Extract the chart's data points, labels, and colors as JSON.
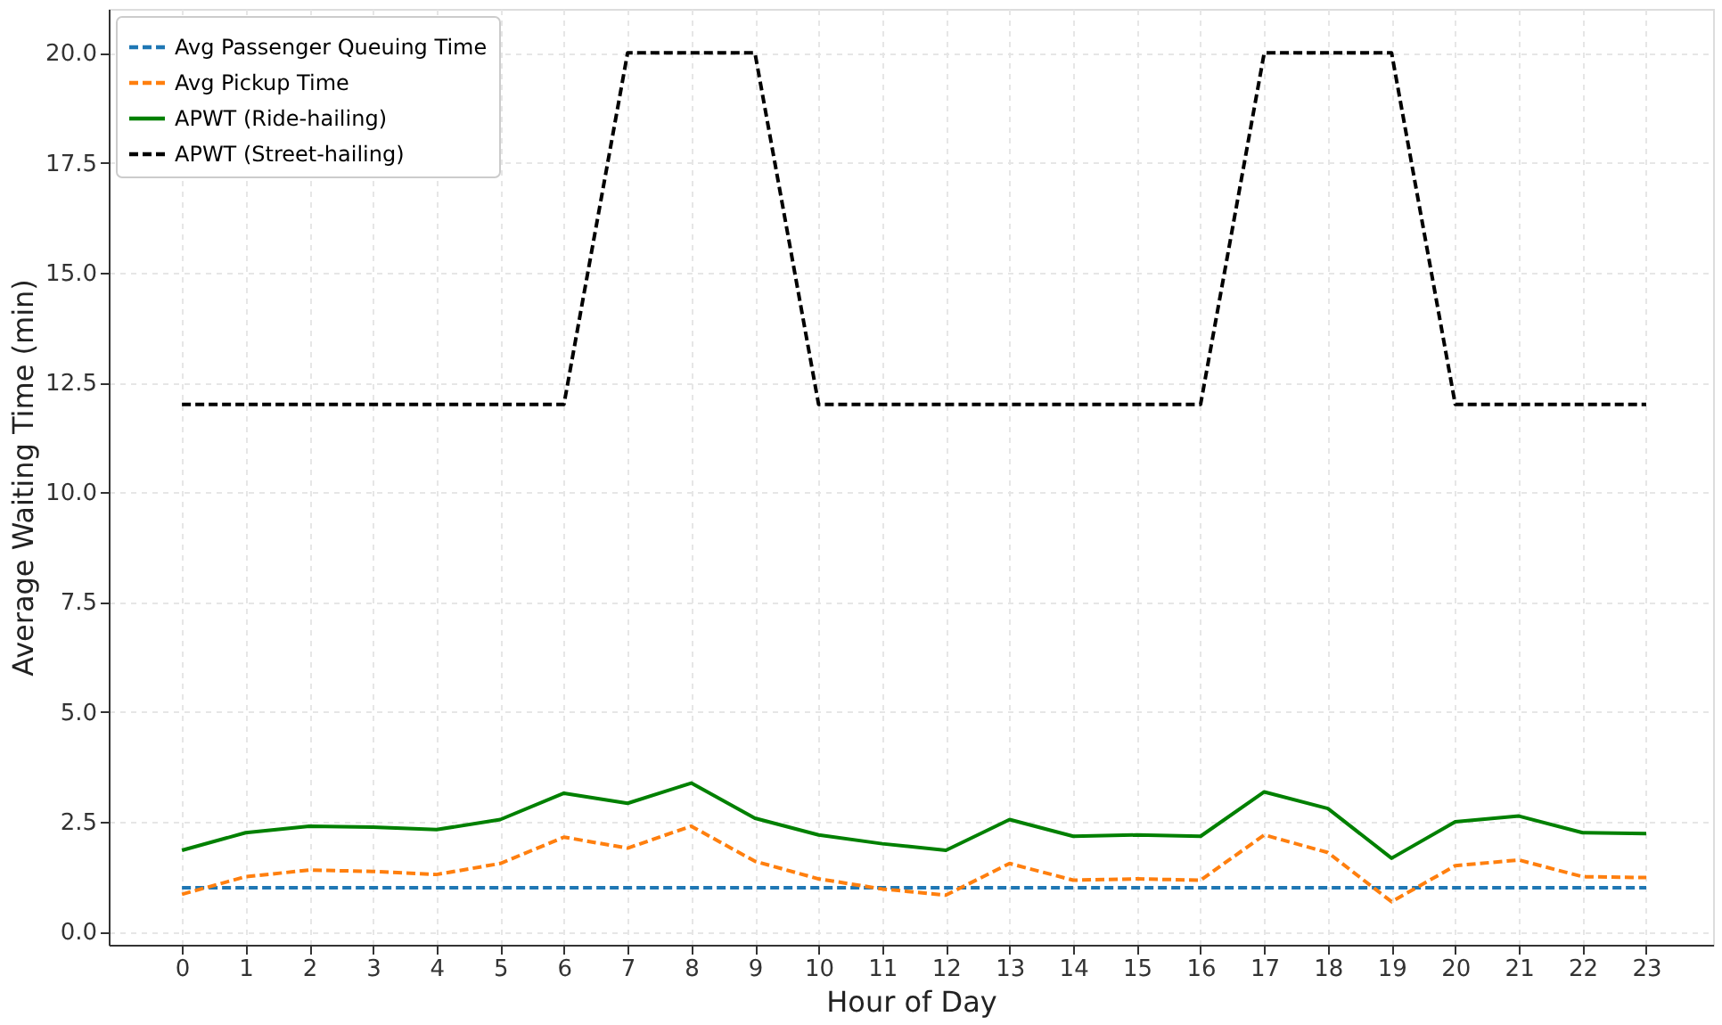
{
  "chart_data": {
    "type": "line",
    "xlabel": "Hour of Day",
    "ylabel": "Average Waiting Time (min)",
    "x": [
      0,
      1,
      2,
      3,
      4,
      5,
      6,
      7,
      8,
      9,
      10,
      11,
      12,
      13,
      14,
      15,
      16,
      17,
      18,
      19,
      20,
      21,
      22,
      23
    ],
    "xlim": [
      -1.15,
      24.05
    ],
    "xticks": [
      0,
      1,
      2,
      3,
      4,
      5,
      6,
      7,
      8,
      9,
      10,
      11,
      12,
      13,
      14,
      15,
      16,
      17,
      18,
      19,
      20,
      21,
      22,
      23
    ],
    "ylim": [
      -0.3,
      21
    ],
    "yticks": [
      {
        "value": 0,
        "label": "0.0"
      },
      {
        "value": 2.5,
        "label": "2.5"
      },
      {
        "value": 5,
        "label": "5.0"
      },
      {
        "value": 7.5,
        "label": "7.5"
      },
      {
        "value": 10,
        "label": "10.0"
      },
      {
        "value": 12.5,
        "label": "12.5"
      },
      {
        "value": 15,
        "label": "15.0"
      },
      {
        "value": 17.5,
        "label": "17.5"
      },
      {
        "value": 20,
        "label": "20.0"
      }
    ],
    "grid": true,
    "legend": "top left",
    "marker": "none",
    "series": [
      {
        "name": "Avg Passenger Queuing Time",
        "color": "#1f77b4",
        "line_style": "dashed",
        "values": [
          1,
          1,
          1,
          1,
          1,
          1,
          1,
          1,
          1,
          1,
          1,
          1,
          1,
          1,
          1,
          1,
          1,
          1,
          1,
          1,
          1,
          1,
          1,
          1
        ]
      },
      {
        "name": "Avg Pickup Time",
        "color": "#ff7f0e",
        "line_style": "dashed",
        "values": [
          0.85,
          1.25,
          1.4,
          1.37,
          1.3,
          1.55,
          2.15,
          1.9,
          2.4,
          1.6,
          1.2,
          0.97,
          0.83,
          1.55,
          1.17,
          1.2,
          1.17,
          2.2,
          1.8,
          0.68,
          1.5,
          1.63,
          1.25,
          1.23
        ]
      },
      {
        "name": "APWT (Ride-hailing)",
        "color": "#008000",
        "line_style": "solid",
        "values": [
          1.85,
          2.25,
          2.4,
          2.38,
          2.32,
          2.55,
          3.15,
          2.92,
          3.38,
          2.58,
          2.2,
          2.0,
          1.85,
          2.55,
          2.17,
          2.2,
          2.17,
          3.18,
          2.8,
          1.67,
          2.5,
          2.63,
          2.25,
          2.23
        ]
      },
      {
        "name": "APWT (Street-hailing)",
        "color": "#000000",
        "line_style": "dashed",
        "values": [
          12,
          12,
          12,
          12,
          12,
          12,
          12,
          20,
          20,
          20,
          12,
          12,
          12,
          12,
          12,
          12,
          12,
          20,
          20,
          20,
          12,
          12,
          12,
          12
        ]
      }
    ]
  }
}
